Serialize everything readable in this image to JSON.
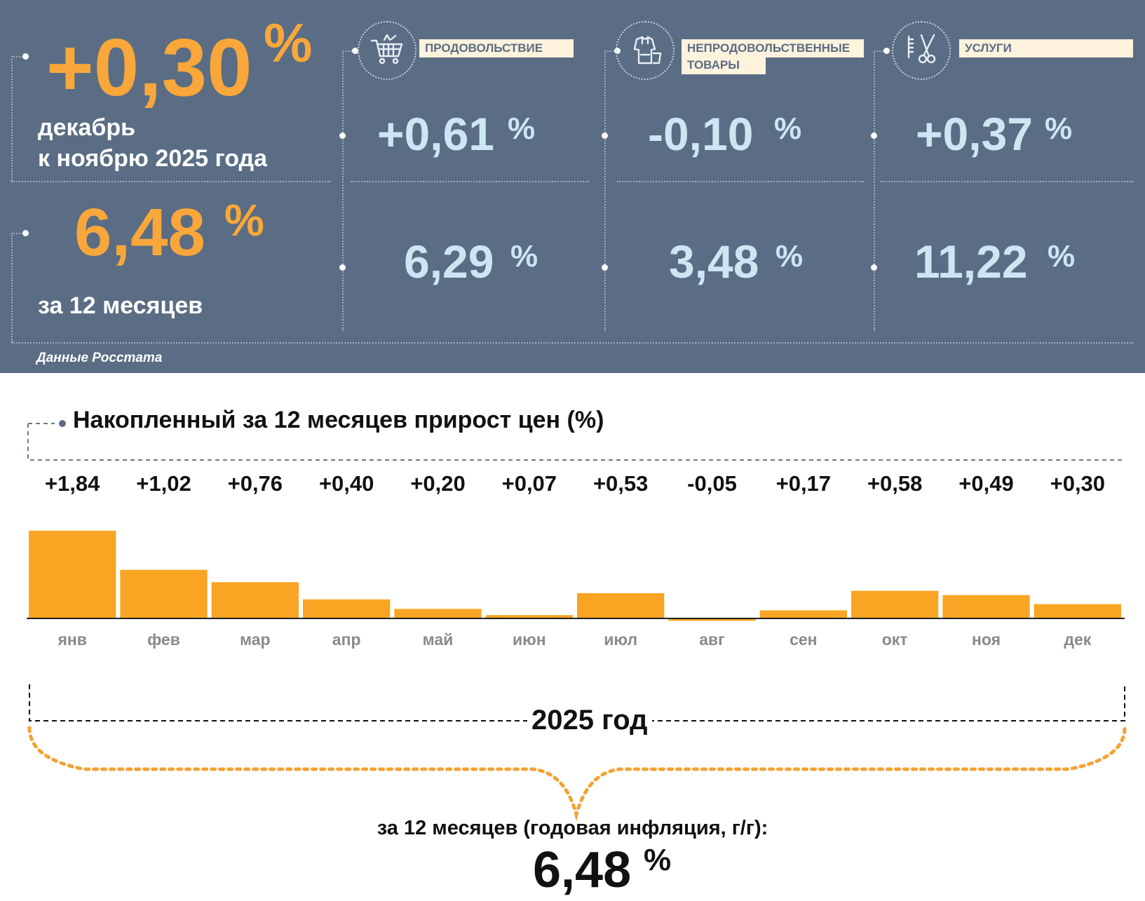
{
  "summary": {
    "month_value": "+0,30",
    "month_pct": "%",
    "month_caption_1": "декабрь",
    "month_caption_2": "к ноябрю 2025 года",
    "year_value": "6,48",
    "year_pct": "%",
    "year_caption": "за 12 месяцев",
    "source": "Данные Росстата"
  },
  "categories": [
    {
      "icon": "shopping-cart-icon",
      "label_1": "ПРОДОВОЛЬСТВИЕ",
      "label_2": "",
      "month": "+0,61",
      "year": "6,29",
      "pct": "%"
    },
    {
      "icon": "clothing-icon",
      "label_1": "НЕПРОДОВОЛЬСТВЕННЫЕ",
      "label_2": "ТОВАРЫ",
      "month": "-0,10",
      "year": "3,48",
      "pct": "%"
    },
    {
      "icon": "scissors-comb-icon",
      "label_1": "УСЛУГИ",
      "label_2": "",
      "month": "+0,37",
      "year": "11,22",
      "pct": "%"
    }
  ],
  "chart_data": {
    "type": "bar",
    "title": "Накопленный за 12 месяцев прирост цен (%)",
    "categories": [
      "янв",
      "фев",
      "мар",
      "апр",
      "май",
      "июн",
      "июл",
      "авг",
      "сен",
      "окт",
      "ноя",
      "дек"
    ],
    "values": [
      1.84,
      1.02,
      0.76,
      0.4,
      0.2,
      0.07,
      0.53,
      -0.05,
      0.17,
      0.58,
      0.49,
      0.3
    ],
    "value_labels": [
      "+1,84",
      "+1,02",
      "+0,76",
      "+0,40",
      "+0,20",
      "+0,07",
      "+0,53",
      "-0,05",
      "+0,17",
      "+0,58",
      "+0,49",
      "+0,30"
    ],
    "bar_color": "#f9a523",
    "year_label": "2025 год",
    "annual_label": "за 12 месяцев (годовая инфляция, г/г):",
    "annual_value": "6,48",
    "annual_pct": "%"
  }
}
